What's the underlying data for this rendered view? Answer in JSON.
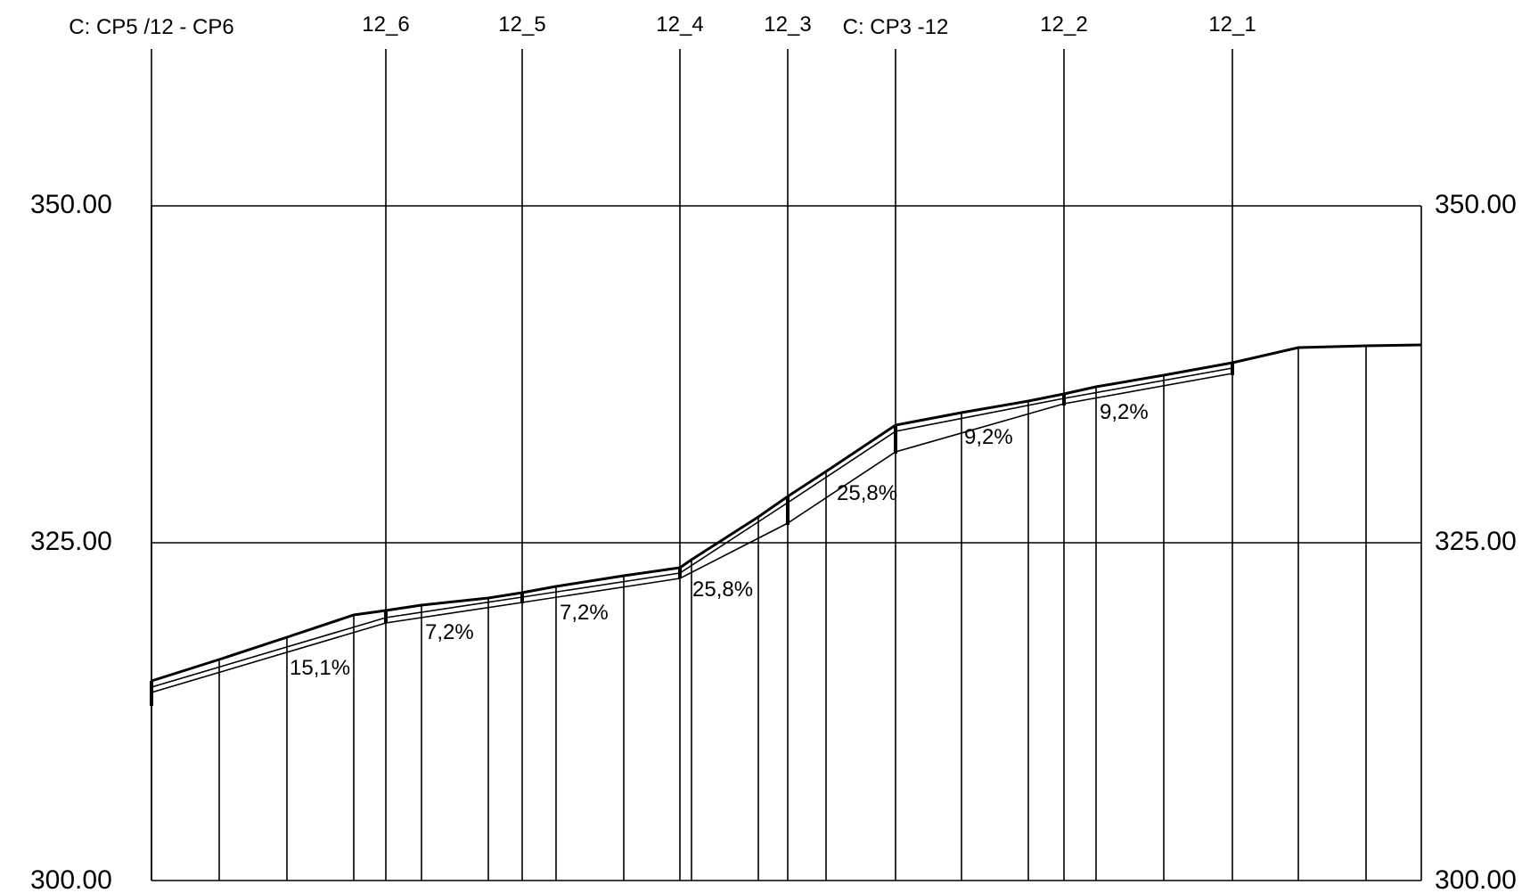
{
  "drawing": {
    "elevation_labels": [
      "350.00",
      "325.00",
      "300.00"
    ],
    "stations": [
      {
        "label": "C: CP5 /12 - CP6",
        "ground": 315.5
      },
      {
        "label": "12_6",
        "ground": 320.2
      },
      {
        "label": "12_5",
        "ground": 321.6
      },
      {
        "label": "12_4",
        "ground": 323.3
      },
      {
        "label": "12_3",
        "ground": 328.6
      },
      {
        "label": "C: CP3 -12",
        "ground": 333.7
      },
      {
        "label": "12_2",
        "ground": 336.3
      },
      {
        "label": "12_1",
        "ground": 338.8
      }
    ],
    "slopes": [
      "15,1%",
      "7,2%",
      "7,2%",
      "25,8%",
      "25,8%",
      "9,2%",
      "9,2%"
    ],
    "line_color": "#000000",
    "background": "#ffffff"
  }
}
